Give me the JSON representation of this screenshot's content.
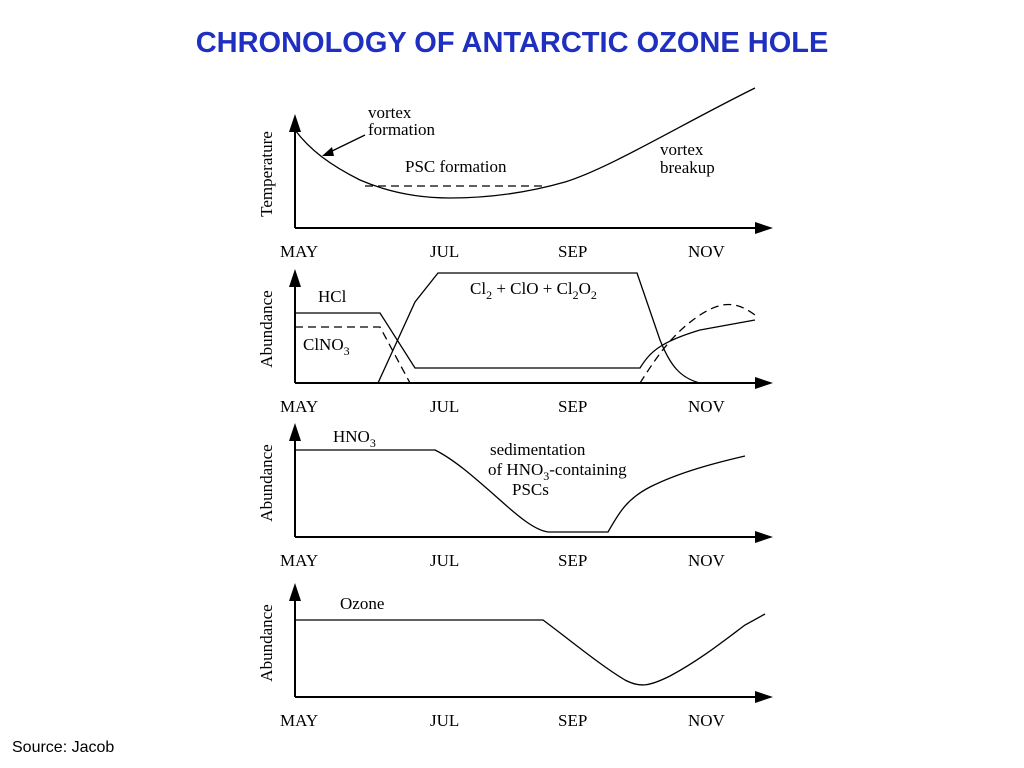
{
  "title": "CHRONOLOGY OF ANTARCTIC OZONE HOLE",
  "source": "Source: Jacob",
  "panels": [
    {
      "y_label": "Temperature",
      "x_labels": [
        "MAY",
        "JUL",
        "SEP",
        "NOV"
      ],
      "labels": [
        "vortex",
        "formation",
        "PSC formation",
        "vortex",
        "breakup"
      ]
    },
    {
      "y_label": "Abundance",
      "x_labels": [
        "MAY",
        "JUL",
        "SEP",
        "NOV"
      ],
      "labels": [
        "HCl",
        [
          {
            "text": "ClNO"
          },
          {
            "sub": "3"
          }
        ],
        [
          {
            "text": "Cl"
          },
          {
            "sub": "2"
          },
          {
            "text": " + ClO + Cl"
          },
          {
            "sub": "2"
          },
          {
            "text": "O"
          },
          {
            "sub": "2"
          }
        ]
      ]
    },
    {
      "y_label": "Abundance",
      "x_labels": [
        "MAY",
        "JUL",
        "SEP",
        "NOV"
      ],
      "labels": [
        [
          {
            "text": "HNO"
          },
          {
            "sub": "3"
          }
        ],
        "sedimentation",
        [
          {
            "text": "of HNO"
          },
          {
            "sub": "3"
          },
          {
            "text": "-containing"
          }
        ],
        "PSCs"
      ]
    },
    {
      "y_label": "Abundance",
      "x_labels": [
        "MAY",
        "JUL",
        "SEP",
        "NOV"
      ],
      "labels": [
        "Ozone"
      ]
    }
  ]
}
